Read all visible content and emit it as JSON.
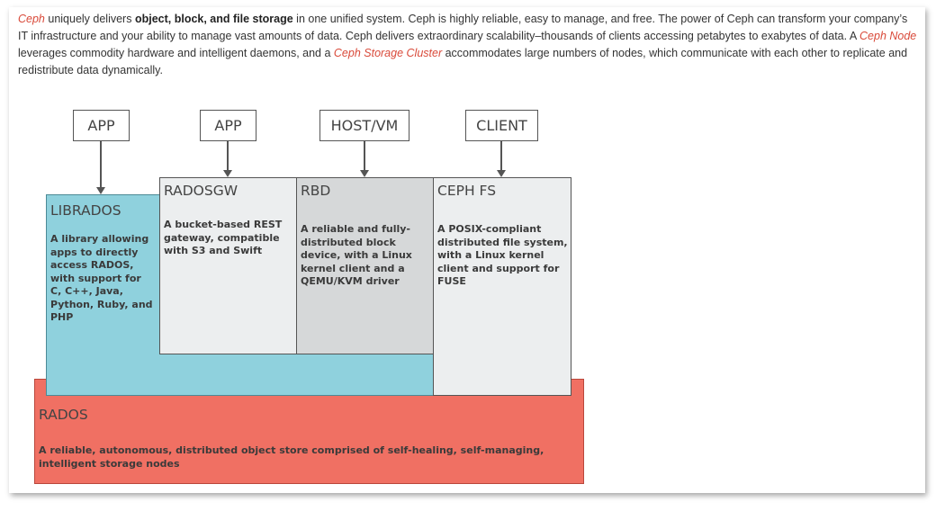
{
  "intro": {
    "w1": "Ceph",
    "t1": " uniquely delivers ",
    "b1": "object, block, and file storage",
    "t2": " in one unified system. Ceph is highly reliable, easy to manage, and free. The power of Ceph can transform your company’s IT infrastructure and your ability to manage vast amounts of data. Ceph delivers extraordinary scalability–thousands of clients accessing petabytes to exabytes of data. A ",
    "l1": "Ceph Node",
    "t3": " leverages commodity hardware and intelligent daemons, and a ",
    "l2": "Ceph Storage Cluster",
    "t4": " accommodates large numbers of nodes, which communicate with each other to replicate and redistribute data dynamically."
  },
  "diagram": {
    "top": {
      "app1": "APP",
      "app2": "APP",
      "hostvm": "HOST/VM",
      "client": "CLIENT"
    },
    "librados": {
      "title": "LIBRADOS",
      "desc": "A library allowing apps to directly access RADOS, with support for C, C++, Java, Python, Ruby, and PHP"
    },
    "radosgw": {
      "title": "RADOSGW",
      "desc": "A bucket-based REST gateway, compatible with S3 and Swift"
    },
    "rbd": {
      "title": "RBD",
      "desc": "A reliable and fully-distributed block device, with a Linux kernel client and a QEMU/KVM driver"
    },
    "cephfs": {
      "title": "CEPH FS",
      "desc": "A POSIX-compliant distributed file system, with a Linux kernel client and support for FUSE"
    },
    "rados": {
      "title": "RADOS",
      "desc": "A reliable, autonomous, distributed object store comprised of self-healing, self-managing, intelligent storage nodes"
    }
  },
  "colors": {
    "librados": "#8fd1dd",
    "radosgw": "#eceeef",
    "rbd": "#d6d8d9",
    "cephfs": "#eceeef",
    "rados": "#f07063",
    "link": "#d94a3a"
  }
}
